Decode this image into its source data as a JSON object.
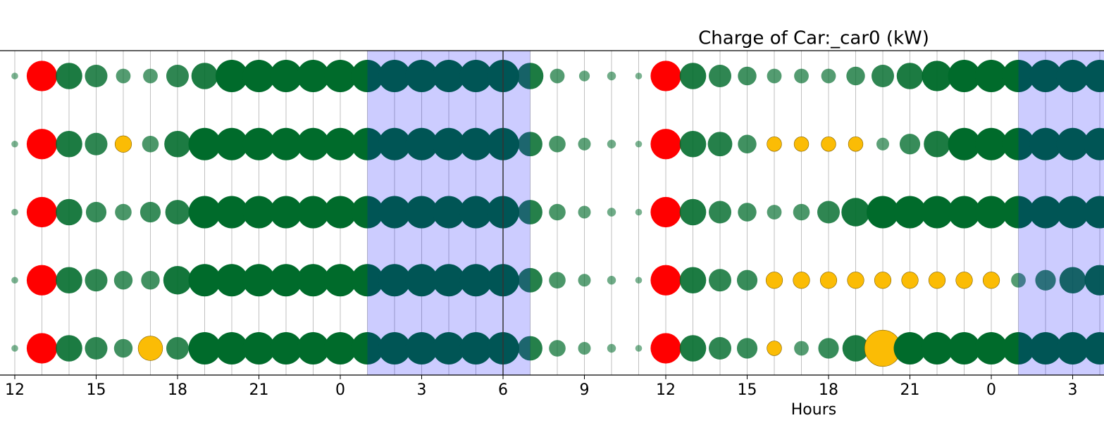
{
  "chart_data": {
    "type": "bubble",
    "title": "Charge of Car:_car0 (kW)",
    "xlabel": "Hours",
    "x": [
      0,
      1,
      2,
      3,
      4,
      5,
      6,
      7,
      8,
      9,
      10,
      11,
      12,
      13,
      14,
      15,
      16,
      17,
      18,
      19,
      20,
      21,
      22,
      23,
      24,
      25,
      26,
      27,
      28,
      29,
      30,
      31,
      32,
      33,
      34,
      35,
      36,
      37,
      38,
      39,
      40
    ],
    "xlim": [
      -0.545,
      40.155
    ],
    "xticks": [
      {
        "value": 0,
        "label": "12"
      },
      {
        "value": 3,
        "label": "15"
      },
      {
        "value": 6,
        "label": "18"
      },
      {
        "value": 9,
        "label": "21"
      },
      {
        "value": 12,
        "label": "0"
      },
      {
        "value": 15,
        "label": "3"
      },
      {
        "value": 18,
        "label": "6"
      },
      {
        "value": 21,
        "label": "9"
      },
      {
        "value": 24,
        "label": "12"
      },
      {
        "value": 27,
        "label": "15"
      },
      {
        "value": 30,
        "label": "18"
      },
      {
        "value": 33,
        "label": "21"
      },
      {
        "value": 36,
        "label": "0"
      },
      {
        "value": 39,
        "label": "3"
      }
    ],
    "grid": true,
    "spans": [
      [
        13,
        19
      ],
      [
        37,
        41
      ]
    ],
    "span_color": "#0000ff",
    "vline": 18,
    "series": [
      {
        "values": [
          1,
          7,
          6,
          5,
          3,
          3,
          5,
          6,
          7.5,
          7.5,
          7.5,
          7.5,
          7.5,
          7.5,
          7.5,
          7.5,
          7.5,
          7.5,
          7.5,
          6,
          3,
          2,
          1.5,
          1,
          7,
          6,
          5,
          4,
          3,
          3,
          3,
          4,
          5,
          6,
          7,
          7.5,
          7.5,
          7.5,
          7.5,
          7.5,
          7.5
        ],
        "colors": [
          "#006b2b",
          "#ff0000",
          "#006b2b",
          "#006b2b",
          "#006b2b",
          "#006b2b",
          "#006b2b",
          "#006b2b",
          "#006b2b",
          "#006b2b",
          "#006b2b",
          "#006b2b",
          "#006b2b",
          "#006b2b",
          "#006b2b",
          "#006b2b",
          "#006b2b",
          "#006b2b",
          "#006b2b",
          "#006b2b",
          "#006b2b",
          "#006b2b",
          "#006b2b",
          "#006b2b",
          "#ff0000",
          "#006b2b",
          "#006b2b",
          "#006b2b",
          "#006b2b",
          "#006b2b",
          "#006b2b",
          "#006b2b",
          "#006b2b",
          "#006b2b",
          "#006b2b",
          "#006b2b",
          "#006b2b",
          "#006b2b",
          "#006b2b",
          "#006b2b",
          "#006b2b"
        ]
      },
      {
        "values": [
          1,
          7,
          6,
          5,
          3.5,
          3.5,
          6,
          7.5,
          7.5,
          7.5,
          7.5,
          7.5,
          7.5,
          7.5,
          7.5,
          7.5,
          7.5,
          7.5,
          7.5,
          5.5,
          3.5,
          2.5,
          1.5,
          1,
          7,
          6,
          5.5,
          4,
          3,
          3,
          3,
          3,
          2.5,
          4.5,
          6,
          7.5,
          7.5,
          7.5,
          7.5,
          7.5,
          7.5
        ],
        "colors": [
          "#006b2b",
          "#ff0000",
          "#006b2b",
          "#006b2b",
          "#fbbc05",
          "#006b2b",
          "#006b2b",
          "#006b2b",
          "#006b2b",
          "#006b2b",
          "#006b2b",
          "#006b2b",
          "#006b2b",
          "#006b2b",
          "#006b2b",
          "#006b2b",
          "#006b2b",
          "#006b2b",
          "#006b2b",
          "#006b2b",
          "#006b2b",
          "#006b2b",
          "#006b2b",
          "#006b2b",
          "#ff0000",
          "#006b2b",
          "#006b2b",
          "#006b2b",
          "#fbbc05",
          "#fbbc05",
          "#fbbc05",
          "#fbbc05",
          "#006b2b",
          "#006b2b",
          "#006b2b",
          "#006b2b",
          "#006b2b",
          "#006b2b",
          "#006b2b",
          "#006b2b",
          "#006b2b"
        ]
      },
      {
        "values": [
          1,
          7,
          6,
          4.5,
          3.5,
          4.5,
          5.5,
          7.5,
          7.5,
          7.5,
          7.5,
          7.5,
          7.5,
          7.5,
          7.5,
          7.5,
          7.5,
          7.5,
          7.5,
          5.5,
          3.5,
          2.5,
          1.5,
          1,
          7,
          6,
          5,
          4,
          3,
          3.5,
          5,
          6.5,
          7.5,
          7.5,
          7.5,
          7.5,
          7.5,
          7.5,
          7.5,
          7.5,
          7.5
        ],
        "colors": [
          "#006b2b",
          "#ff0000",
          "#006b2b",
          "#006b2b",
          "#006b2b",
          "#006b2b",
          "#006b2b",
          "#006b2b",
          "#006b2b",
          "#006b2b",
          "#006b2b",
          "#006b2b",
          "#006b2b",
          "#006b2b",
          "#006b2b",
          "#006b2b",
          "#006b2b",
          "#006b2b",
          "#006b2b",
          "#006b2b",
          "#006b2b",
          "#006b2b",
          "#006b2b",
          "#006b2b",
          "#ff0000",
          "#006b2b",
          "#006b2b",
          "#006b2b",
          "#006b2b",
          "#006b2b",
          "#006b2b",
          "#006b2b",
          "#006b2b",
          "#006b2b",
          "#006b2b",
          "#006b2b",
          "#006b2b",
          "#006b2b",
          "#006b2b",
          "#006b2b",
          "#006b2b"
        ]
      },
      {
        "values": [
          1,
          7,
          6,
          5,
          4,
          4,
          6.5,
          7.5,
          7.5,
          7.5,
          7.5,
          7.5,
          7.5,
          7.5,
          7.5,
          7.5,
          7.5,
          7.5,
          7.5,
          5.5,
          3.5,
          2.5,
          1.5,
          1,
          7,
          6,
          5,
          4.5,
          3.5,
          3.5,
          3.5,
          3.5,
          3.5,
          3.5,
          3.5,
          3.5,
          3.5,
          3,
          4.5,
          6,
          7
        ],
        "colors": [
          "#006b2b",
          "#ff0000",
          "#006b2b",
          "#006b2b",
          "#006b2b",
          "#006b2b",
          "#006b2b",
          "#006b2b",
          "#006b2b",
          "#006b2b",
          "#006b2b",
          "#006b2b",
          "#006b2b",
          "#006b2b",
          "#006b2b",
          "#006b2b",
          "#006b2b",
          "#006b2b",
          "#006b2b",
          "#006b2b",
          "#006b2b",
          "#006b2b",
          "#006b2b",
          "#006b2b",
          "#ff0000",
          "#006b2b",
          "#006b2b",
          "#006b2b",
          "#fbbc05",
          "#fbbc05",
          "#fbbc05",
          "#fbbc05",
          "#fbbc05",
          "#fbbc05",
          "#fbbc05",
          "#fbbc05",
          "#fbbc05",
          "#006b2b",
          "#006b2b",
          "#006b2b",
          "#006b2b"
        ]
      },
      {
        "values": [
          1,
          7,
          6,
          5,
          4,
          5.5,
          5,
          7.5,
          7.5,
          7.5,
          7.5,
          7.5,
          7.5,
          7.5,
          7.5,
          7.5,
          7.5,
          7.5,
          7.5,
          5.5,
          3.5,
          2.5,
          1.5,
          1,
          7,
          6,
          5,
          4.5,
          3,
          3,
          4.5,
          6,
          8.5,
          7.5,
          7.5,
          7.5,
          7.5,
          7.5,
          7.5,
          7.5,
          7.5
        ],
        "colors": [
          "#006b2b",
          "#ff0000",
          "#006b2b",
          "#006b2b",
          "#006b2b",
          "#fbbc05",
          "#006b2b",
          "#006b2b",
          "#006b2b",
          "#006b2b",
          "#006b2b",
          "#006b2b",
          "#006b2b",
          "#006b2b",
          "#006b2b",
          "#006b2b",
          "#006b2b",
          "#006b2b",
          "#006b2b",
          "#006b2b",
          "#006b2b",
          "#006b2b",
          "#006b2b",
          "#006b2b",
          "#ff0000",
          "#006b2b",
          "#006b2b",
          "#006b2b",
          "#fbbc05",
          "#006b2b",
          "#006b2b",
          "#006b2b",
          "#fbbc05",
          "#006b2b",
          "#006b2b",
          "#006b2b",
          "#006b2b",
          "#006b2b",
          "#006b2b",
          "#006b2b",
          "#006b2b"
        ]
      }
    ]
  }
}
